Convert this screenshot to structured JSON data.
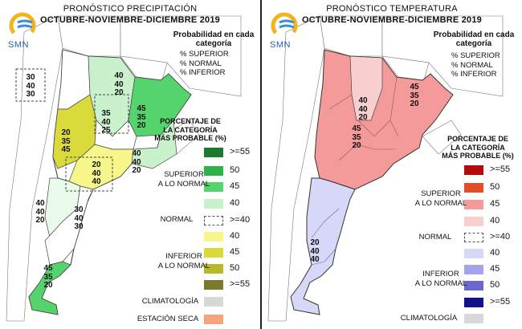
{
  "left": {
    "title_line1": "PRONÓSTICO PRECIPITACIÓN",
    "title_line2": "OCTUBRE-NOVIEMBRE-DICIEMBRE 2019",
    "logo_text": "SMN",
    "prob_title": [
      "Probabilidad en cada",
      "categoría"
    ],
    "prob_items": [
      "% SUPERIOR",
      "% NORMAL",
      "% INFERIOR"
    ],
    "pct_title": [
      "PORCENTAJE DE",
      "LA CATEGORÍA",
      "MÁS PROBABLE (%)"
    ],
    "superior_label": [
      "SUPERIOR",
      "A LO NORMAL"
    ],
    "normal_label": "NORMAL",
    "inferior_label": [
      "INFERIOR",
      "A LO NORMAL"
    ],
    "climatologia_label": "CLIMATOLOGÍA",
    "estacion_seca_label": "ESTACIÓN SECA",
    "swatches": [
      {
        "label": ">=55",
        "color": "#1e7a30"
      },
      {
        "label": "50",
        "color": "#2fb24a"
      },
      {
        "label": "45",
        "color": "#55d46e"
      },
      {
        "label": "40",
        "color": "#c9f2cc"
      },
      {
        "label": ">=40",
        "color": "dashed"
      },
      {
        "label": "40",
        "color": "#f6f68a"
      },
      {
        "label": "45",
        "color": "#dada3a"
      },
      {
        "label": "50",
        "color": "#b8b82a"
      },
      {
        "label": ">=55",
        "color": "#7a7a2e"
      },
      {
        "label": "",
        "color": "#d8d8d8"
      },
      {
        "label": "",
        "color": "#f6a47e"
      }
    ],
    "region_numbers": [
      [
        "30",
        "40",
        "30"
      ],
      [
        "40",
        "40",
        "20"
      ],
      [
        "45",
        "35",
        "20"
      ],
      [
        "35",
        "40",
        "25"
      ],
      [
        "20",
        "35",
        "45"
      ],
      [
        "40",
        "40",
        "20"
      ],
      [
        "20",
        "40",
        "40"
      ],
      [
        "40",
        "40",
        "20"
      ],
      [
        "30",
        "40",
        "30"
      ],
      [
        "45",
        "35",
        "20"
      ]
    ]
  },
  "right": {
    "title_line1": "PRONÓSTICO TEMPERATURA",
    "title_line2": "OCTUBRE-NOVIEMBRE-DICIEMBRE 2019",
    "logo_text": "SMN",
    "prob_title": [
      "Probabilidad en cada",
      "categoría"
    ],
    "prob_items": [
      "% SUPERIOR",
      "% NORMAL",
      "% INFERIOR"
    ],
    "pct_title": [
      "PORCENTAJE DE",
      "LA CATEGORÍA",
      "MÁS PROBABLE (%)"
    ],
    "superior_label": [
      "SUPERIOR",
      "A LO NORMAL"
    ],
    "normal_label": "NORMAL",
    "inferior_label": [
      "INFERIOR",
      "A LO NORMAL"
    ],
    "climatologia_label": "CLIMATOLOGÍA",
    "swatches": [
      {
        "label": ">=55",
        "color": "#b40a0a"
      },
      {
        "label": "50",
        "color": "#e0502a"
      },
      {
        "label": "45",
        "color": "#f59a9a"
      },
      {
        "label": "40",
        "color": "#f7cfcf"
      },
      {
        "label": ">=40",
        "color": "dashed"
      },
      {
        "label": "40",
        "color": "#d7d7f7"
      },
      {
        "label": "45",
        "color": "#a3a3ee"
      },
      {
        "label": "50",
        "color": "#6868cc"
      },
      {
        "label": ">=55",
        "color": "#12128a"
      },
      {
        "label": "",
        "color": "#d8d8d8"
      }
    ],
    "region_numbers": [
      [
        "45",
        "35",
        "20"
      ],
      [
        "40",
        "40",
        "20"
      ],
      [
        "45",
        "35",
        "20"
      ],
      [
        "20",
        "40",
        "40"
      ]
    ]
  }
}
